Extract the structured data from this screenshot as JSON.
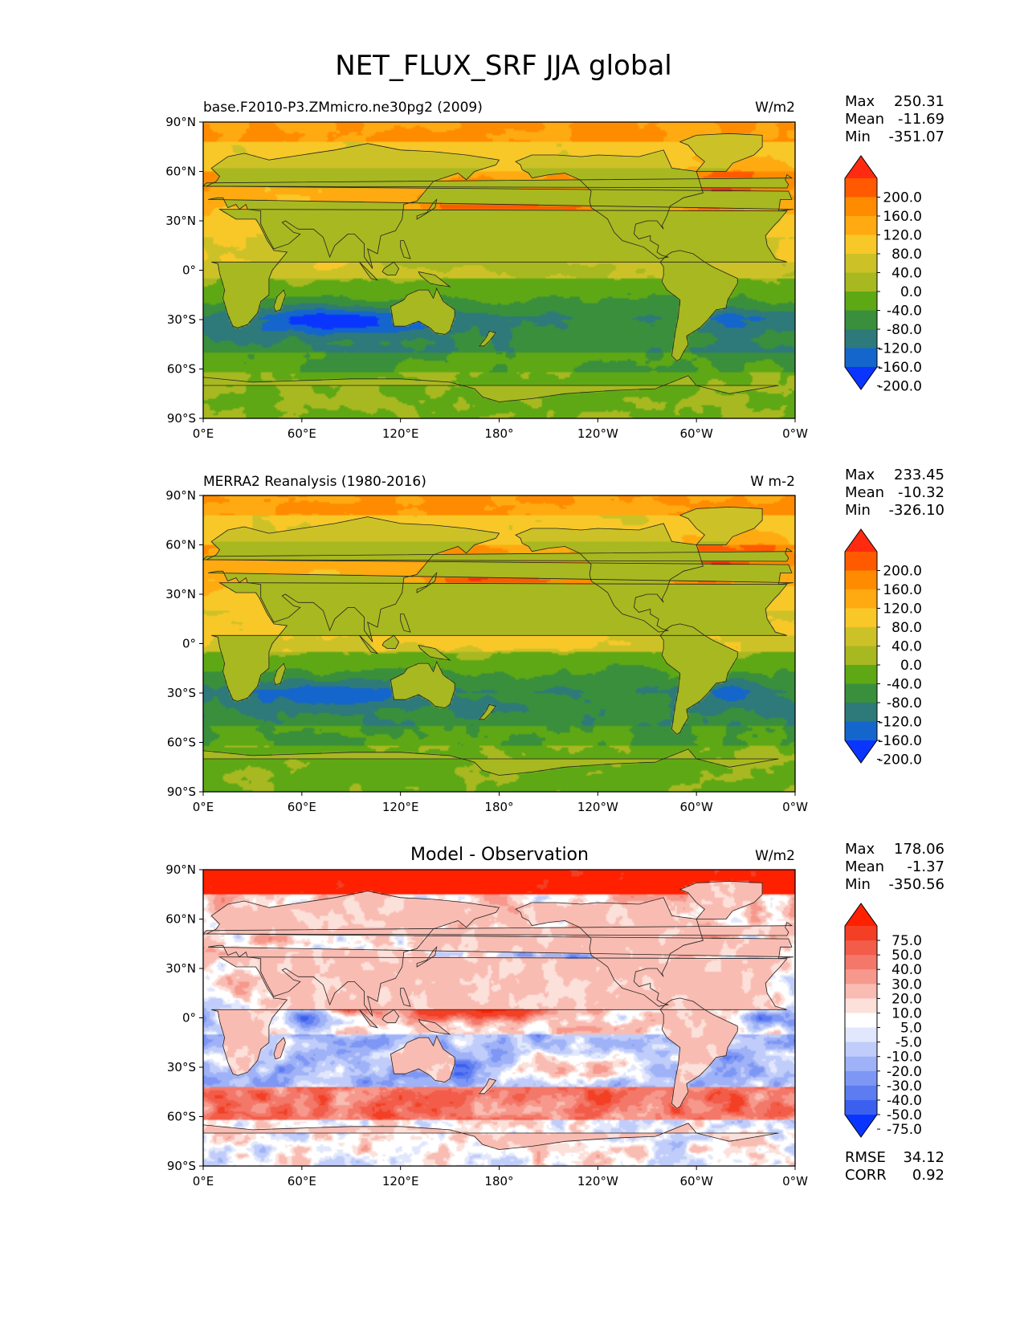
{
  "figure": {
    "title": "NET_FLUX_SRF JJA global"
  },
  "chart_data": [
    {
      "type": "heatmap",
      "subtitle_left": "base.F2010-P3.ZMmicro.ne30pg2 (2009)",
      "subtitle_center": "",
      "units": "W/m2",
      "xticks": [
        "0°E",
        "60°E",
        "120°E",
        "180°",
        "120°W",
        "60°W",
        "0°W"
      ],
      "yticks": [
        "90°N",
        "60°N",
        "30°N",
        "0°",
        "30°S",
        "60°S",
        "90°S"
      ],
      "stats": [
        {
          "label": "Max",
          "value": "250.31"
        },
        {
          "label": "Mean",
          "value": "-11.69"
        },
        {
          "label": "Min",
          "value": "-351.07"
        }
      ],
      "colorbar": {
        "labels": [
          "200.0",
          "160.0",
          "120.0",
          "80.0",
          "40.0",
          "0.0",
          "-40.0",
          "-80.0",
          "-120.0",
          "-160.0",
          "-200.0"
        ],
        "colors": [
          "#ff2a10",
          "#ff5a00",
          "#ff8c00",
          "#ffaa10",
          "#f8c828",
          "#ccc228",
          "#a8b820",
          "#5ea815",
          "#3a8f3c",
          "#2e7a7a",
          "#1466cc",
          "#0a35ff"
        ]
      },
      "field": "model"
    },
    {
      "type": "heatmap",
      "subtitle_left": "MERRA2 Reanalysis (1980-2016)",
      "subtitle_center": "",
      "units": "W m-2",
      "xticks": [
        "0°E",
        "60°E",
        "120°E",
        "180°",
        "120°W",
        "60°W",
        "0°W"
      ],
      "yticks": [
        "90°N",
        "60°N",
        "30°N",
        "0°",
        "30°S",
        "60°S",
        "90°S"
      ],
      "stats": [
        {
          "label": "Max",
          "value": "233.45"
        },
        {
          "label": "Mean",
          "value": "-10.32"
        },
        {
          "label": "Min",
          "value": "-326.10"
        }
      ],
      "colorbar": {
        "labels": [
          "200.0",
          "160.0",
          "120.0",
          "80.0",
          "40.0",
          "0.0",
          "-40.0",
          "-80.0",
          "-120.0",
          "-160.0",
          "-200.0"
        ],
        "colors": [
          "#ff2a10",
          "#ff5a00",
          "#ff8c00",
          "#ffaa10",
          "#f8c828",
          "#ccc228",
          "#a8b820",
          "#5ea815",
          "#3a8f3c",
          "#2e7a7a",
          "#1466cc",
          "#0a35ff"
        ]
      },
      "field": "obs"
    },
    {
      "type": "heatmap",
      "subtitle_left": "",
      "subtitle_center": "Model - Observation",
      "units": "W/m2",
      "xticks": [
        "0°E",
        "60°E",
        "120°E",
        "180°",
        "120°W",
        "60°W",
        "0°W"
      ],
      "yticks": [
        "90°N",
        "60°N",
        "30°N",
        "0°",
        "30°S",
        "60°S",
        "90°S"
      ],
      "stats": [
        {
          "label": "Max",
          "value": "178.06"
        },
        {
          "label": "Mean",
          "value": "-1.37"
        },
        {
          "label": "Min",
          "value": "-350.56"
        }
      ],
      "colorbar": {
        "labels": [
          "75.0",
          "50.0",
          "40.0",
          "30.0",
          "20.0",
          "10.0",
          "5.0",
          "-5.0",
          "-10.0",
          "-20.0",
          "-30.0",
          "-40.0",
          "-50.0",
          "-75.0"
        ],
        "colors": [
          "#ff2000",
          "#f33f24",
          "#f25c48",
          "#f3786a",
          "#f6998c",
          "#f9bcb2",
          "#fce0da",
          "#ffffff",
          "#e1e7fc",
          "#c0cdfa",
          "#9fb2f7",
          "#7e97f4",
          "#5d7cf1",
          "#3b60ef",
          "#0a35ff"
        ]
      },
      "field": "diff",
      "metrics": [
        {
          "label": "RMSE",
          "value": "34.12"
        },
        {
          "label": "CORR",
          "value": "0.92"
        }
      ]
    }
  ]
}
